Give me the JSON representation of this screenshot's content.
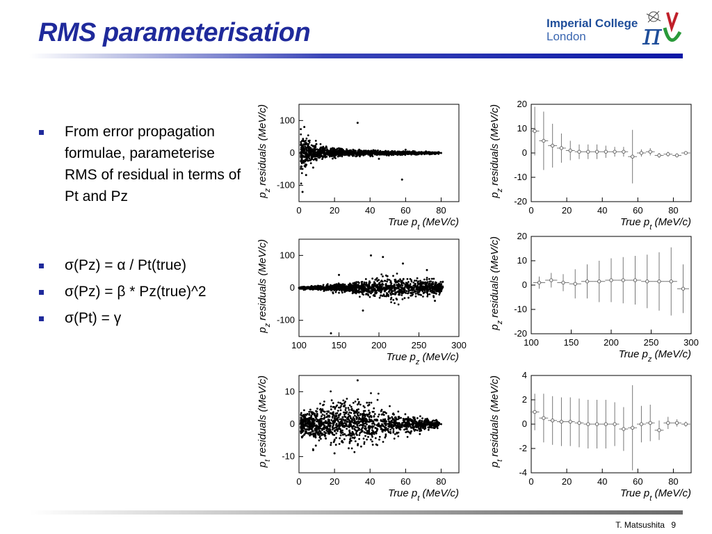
{
  "slide": {
    "title": "RMS parameterisation",
    "logo": {
      "line1": "Imperial College",
      "line2": "London"
    },
    "footer": {
      "author": "T. Matsushita",
      "page": "9"
    },
    "bullets": [
      "From error propagation formulae, parameterise RMS of residual in terms of Pt and Pz",
      "σ(Pz) = α / Pt(true)",
      "σ(Pz) = β * Pz(true)^2",
      "σ(Pt) = γ"
    ]
  },
  "chart_data": [
    {
      "type": "scatter",
      "xlabel": "True p_t (MeV/c)",
      "ylabel": "p_z residuals (MeV/c)",
      "xlim": [
        0,
        90
      ],
      "ylim": [
        -150,
        150
      ],
      "xticks": [
        0,
        20,
        40,
        60,
        80
      ],
      "yticks": [
        100,
        0,
        -100
      ],
      "description": "",
      "envelope": [
        [
          2,
          60
        ],
        [
          5,
          40
        ],
        [
          10,
          25
        ],
        [
          20,
          15
        ],
        [
          30,
          10
        ],
        [
          40,
          8
        ],
        [
          50,
          6
        ],
        [
          60,
          5
        ],
        [
          70,
          4
        ],
        [
          80,
          3
        ]
      ],
      "outliers": [
        [
          33,
          93
        ],
        [
          58,
          -82
        ],
        [
          3,
          80
        ],
        [
          45,
          -18
        ],
        [
          8,
          -45
        ],
        [
          60,
          10
        ],
        [
          75,
          0
        ],
        [
          80,
          0
        ],
        [
          4,
          -68
        ],
        [
          2,
          -120
        ]
      ]
    },
    {
      "type": "errorbar",
      "xlabel": "True p_t (MeV/c)",
      "ylabel": "p_z residuals (MeV/c)",
      "xlim": [
        0,
        90
      ],
      "ylim": [
        -20,
        20
      ],
      "xticks": [
        0,
        20,
        40,
        60,
        80
      ],
      "yticks": [
        20,
        10,
        0,
        -10,
        -20
      ],
      "x": [
        2,
        7,
        12,
        17,
        22,
        27,
        32,
        37,
        42,
        47,
        52,
        57,
        62,
        67,
        72,
        77,
        82,
        87
      ],
      "y": [
        9,
        5,
        3,
        2,
        1,
        0.5,
        0.5,
        0.5,
        0.5,
        0.5,
        0.5,
        -1.5,
        0,
        0.5,
        -1,
        -0.5,
        -1,
        0
      ],
      "err": [
        10,
        12,
        9,
        6,
        4,
        3,
        3,
        3,
        2.5,
        2,
        2,
        11,
        1.5,
        1.5,
        1,
        1,
        0.8,
        0.5
      ]
    },
    {
      "type": "scatter",
      "xlabel": "True p_z (MeV/c)",
      "ylabel": "p_z residuals (MeV/c)",
      "xlim": [
        100,
        300
      ],
      "ylim": [
        -150,
        150
      ],
      "xticks": [
        100,
        150,
        200,
        250,
        300
      ],
      "yticks": [
        100,
        0,
        -100
      ],
      "envelope": [
        [
          100,
          3
        ],
        [
          130,
          8
        ],
        [
          160,
          15
        ],
        [
          190,
          25
        ],
        [
          220,
          35
        ],
        [
          250,
          30
        ],
        [
          280,
          20
        ]
      ],
      "outliers": [
        [
          190,
          100
        ],
        [
          205,
          95
        ],
        [
          140,
          -140
        ],
        [
          180,
          -70
        ],
        [
          260,
          55
        ],
        [
          230,
          75
        ],
        [
          150,
          40
        ],
        [
          270,
          -40
        ]
      ]
    },
    {
      "type": "errorbar",
      "xlabel": "True p_z (MeV/c)",
      "ylabel": "p_z residuals (MeV/c)",
      "xlim": [
        100,
        300
      ],
      "ylim": [
        -20,
        20
      ],
      "xticks": [
        100,
        150,
        200,
        250,
        300
      ],
      "yticks": [
        20,
        10,
        0,
        -10,
        -20
      ],
      "x": [
        110,
        125,
        140,
        155,
        170,
        185,
        200,
        215,
        230,
        245,
        260,
        275,
        290
      ],
      "y": [
        1,
        2,
        1,
        0.5,
        1.5,
        1.5,
        2,
        2,
        2,
        1.5,
        1.5,
        1.5,
        -1.5
      ],
      "err": [
        2.5,
        3,
        3.5,
        6,
        7,
        8.5,
        9,
        9.5,
        10,
        11,
        12,
        14,
        10
      ]
    },
    {
      "type": "scatter",
      "xlabel": "True p_t (MeV/c)",
      "ylabel": "p_t residuals (MeV/c)",
      "xlim": [
        0,
        90
      ],
      "ylim": [
        -15,
        15
      ],
      "xticks": [
        0,
        20,
        40,
        60,
        80
      ],
      "yticks": [
        10,
        0,
        -10
      ],
      "envelope": [
        [
          2,
          4
        ],
        [
          10,
          6
        ],
        [
          20,
          7
        ],
        [
          30,
          7
        ],
        [
          40,
          6
        ],
        [
          50,
          5
        ],
        [
          60,
          3
        ],
        [
          70,
          2
        ],
        [
          80,
          1
        ]
      ],
      "outliers": [
        [
          33,
          13.5
        ],
        [
          20,
          -9
        ],
        [
          8,
          -8
        ],
        [
          65,
          2
        ],
        [
          75,
          0
        ],
        [
          80,
          0
        ]
      ]
    },
    {
      "type": "errorbar",
      "xlabel": "True p_t (MeV/c)",
      "ylabel": "p_t residuals (MeV/c)",
      "xlim": [
        0,
        90
      ],
      "ylim": [
        -4,
        4
      ],
      "xticks": [
        0,
        20,
        40,
        60,
        80
      ],
      "yticks": [
        4,
        2,
        0,
        -2,
        -4
      ],
      "x": [
        2,
        7,
        12,
        17,
        22,
        27,
        32,
        37,
        42,
        47,
        52,
        57,
        62,
        67,
        72,
        77,
        82,
        87
      ],
      "y": [
        1,
        0.5,
        0.3,
        0.2,
        0.2,
        0.1,
        0.0,
        0.0,
        0.0,
        0.0,
        -0.4,
        -0.3,
        0.0,
        0.1,
        -0.5,
        0.1,
        0.1,
        0.0
      ],
      "err": [
        1.5,
        2,
        2,
        2,
        2,
        2,
        2,
        2,
        2,
        1.8,
        1.8,
        3.5,
        1.5,
        1.5,
        0.8,
        0.5,
        0.3,
        0.2
      ]
    }
  ]
}
